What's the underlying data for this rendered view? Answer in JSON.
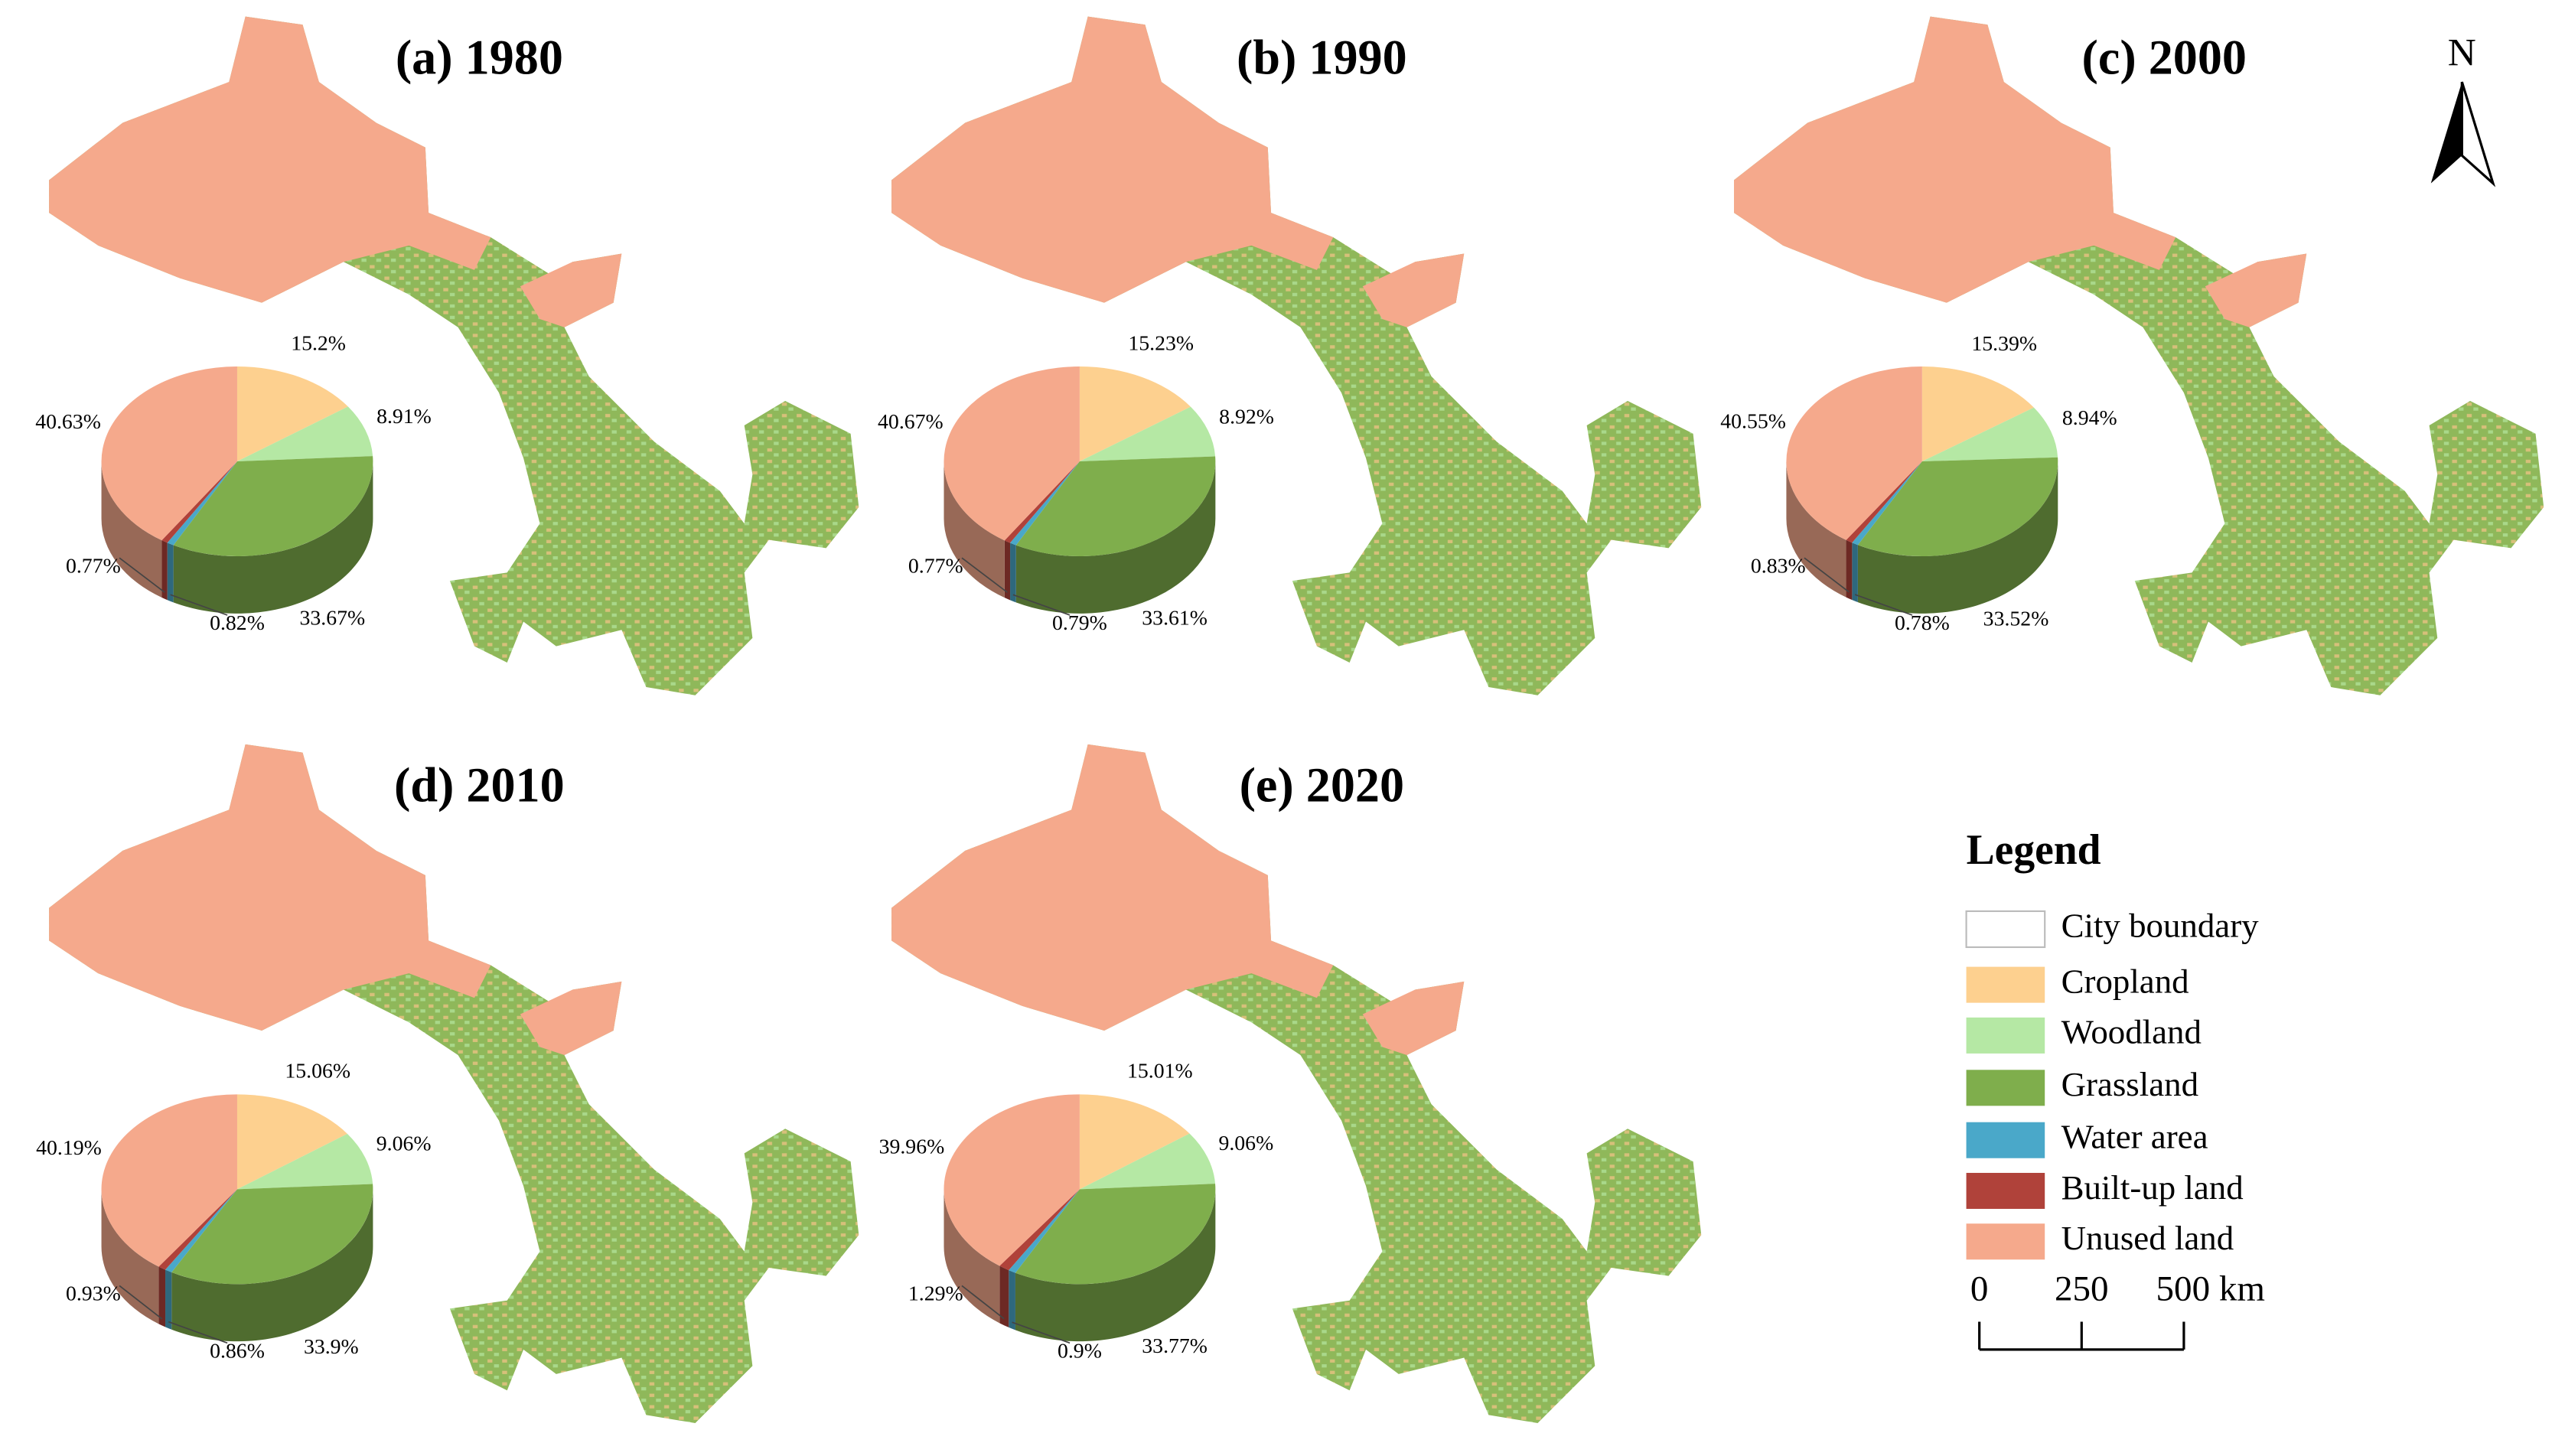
{
  "north_arrow": "N",
  "legend": {
    "title": "Legend",
    "items": [
      {
        "label": "City boundary",
        "color": "#ffffff"
      },
      {
        "label": "Cropland",
        "color": "#fdd08f"
      },
      {
        "label": "Woodland",
        "color": "#b5e8a4"
      },
      {
        "label": "Grassland",
        "color": "#7fae4c"
      },
      {
        "label": "Water area",
        "color": "#4aa8c9"
      },
      {
        "label": "Built-up land",
        "color": "#b0423a"
      },
      {
        "label": "Unused land",
        "color": "#f5a98c"
      }
    ]
  },
  "scale_bar": {
    "ticks": [
      0,
      250,
      {
        "value": 500,
        "label": "500 km"
      }
    ]
  },
  "chart_data": [
    {
      "type": "pie",
      "title": "(a) 1980",
      "colors": [
        "#fdd08f",
        "#b5e8a4",
        "#7fae4c",
        "#4aa8c9",
        "#b0423a",
        "#f5a98c"
      ],
      "values": [
        15.2,
        8.91,
        33.67,
        0.82,
        0.77,
        40.63
      ],
      "value_labels": [
        "15.2%",
        "8.91%",
        "33.67%",
        "0.82%",
        "0.77%",
        "40.63%"
      ]
    },
    {
      "type": "pie",
      "title": "(b) 1990",
      "colors": [
        "#fdd08f",
        "#b5e8a4",
        "#7fae4c",
        "#4aa8c9",
        "#b0423a",
        "#f5a98c"
      ],
      "values": [
        15.23,
        8.92,
        33.61,
        0.79,
        0.77,
        40.67
      ],
      "value_labels": [
        "15.23%",
        "8.92%",
        "33.61%",
        "0.79%",
        "0.77%",
        "40.67%"
      ]
    },
    {
      "type": "pie",
      "title": "(c) 2000",
      "colors": [
        "#fdd08f",
        "#b5e8a4",
        "#7fae4c",
        "#4aa8c9",
        "#b0423a",
        "#f5a98c"
      ],
      "values": [
        15.39,
        8.94,
        33.52,
        0.78,
        0.83,
        40.55
      ],
      "value_labels": [
        "15.39%",
        "8.94%",
        "33.52%",
        "0.78%",
        "0.83%",
        "40.55%"
      ]
    },
    {
      "type": "pie",
      "title": "(d) 2010",
      "colors": [
        "#fdd08f",
        "#b5e8a4",
        "#7fae4c",
        "#4aa8c9",
        "#b0423a",
        "#f5a98c"
      ],
      "values": [
        15.06,
        9.06,
        33.9,
        0.86,
        0.93,
        40.19
      ],
      "value_labels": [
        "15.06%",
        "9.06%",
        "33.9%",
        "0.86%",
        "0.93%",
        "40.19%"
      ]
    },
    {
      "type": "pie",
      "title": "(e) 2020",
      "colors": [
        "#fdd08f",
        "#b5e8a4",
        "#7fae4c",
        "#4aa8c9",
        "#b0423a",
        "#f5a98c"
      ],
      "values": [
        15.01,
        9.06,
        33.77,
        0.9,
        1.29,
        39.96
      ],
      "value_labels": [
        "15.01%",
        "9.06%",
        "33.77%",
        "0.9%",
        "1.29%",
        "39.96%"
      ]
    }
  ]
}
